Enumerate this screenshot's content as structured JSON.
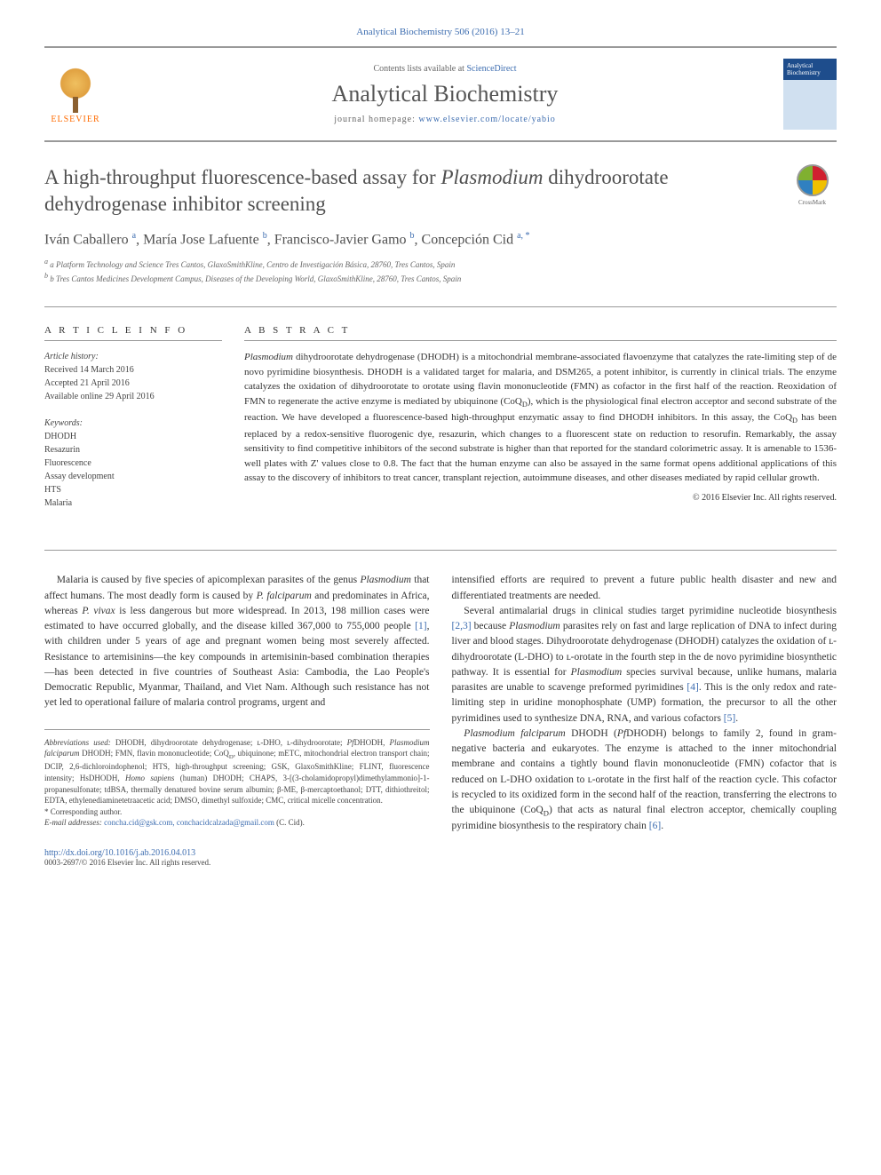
{
  "citation": "Analytical Biochemistry 506 (2016) 13–21",
  "header": {
    "contents_prefix": "Contents lists available at ",
    "contents_link": "ScienceDirect",
    "journal": "Analytical Biochemistry",
    "homepage_prefix": "journal homepage: ",
    "homepage_url": "www.elsevier.com/locate/yabio",
    "elsevier": "ELSEVIER",
    "cover_text": "Analytical Biochemistry"
  },
  "title_html": "A high-throughput fluorescence-based assay for <em>Plasmodium</em> dihydroorotate dehydrogenase inhibitor screening",
  "crossmark": "CrossMark",
  "authors_html": "Iván Caballero <sup>a</sup>, María Jose Lafuente <sup>b</sup>, Francisco-Javier Gamo <sup>b</sup>, Concepción Cid <sup>a, *</sup>",
  "affiliations": [
    "a Platform Technology and Science Tres Cantos, GlaxoSmithKline, Centro de Investigación Básica, 28760, Tres Cantos, Spain",
    "b Tres Cantos Medicines Development Campus, Diseases of the Developing World, GlaxoSmithKline, 28760, Tres Cantos, Spain"
  ],
  "info": {
    "heading": "A R T I C L E   I N F O",
    "history_label": "Article history:",
    "history": [
      "Received 14 March 2016",
      "Accepted 21 April 2016",
      "Available online 29 April 2016"
    ],
    "keywords_label": "Keywords:",
    "keywords": [
      "DHODH",
      "Resazurin",
      "Fluorescence",
      "Assay development",
      "HTS",
      "Malaria"
    ]
  },
  "abstract": {
    "heading": "A B S T R A C T",
    "text_html": "<em>Plasmodium</em> dihydroorotate dehydrogenase (DHODH) is a mitochondrial membrane-associated flavoenzyme that catalyzes the rate-limiting step of de novo pyrimidine biosynthesis. DHODH is a validated target for malaria, and DSM265, a potent inhibitor, is currently in clinical trials. The enzyme catalyzes the oxidation of dihydroorotate to orotate using flavin mononucleotide (FMN) as cofactor in the first half of the reaction. Reoxidation of FMN to regenerate the active enzyme is mediated by ubiquinone (CoQ<sub>D</sub>), which is the physiological final electron acceptor and second substrate of the reaction. We have developed a fluorescence-based high-throughput enzymatic assay to find DHODH inhibitors. In this assay, the CoQ<sub>D</sub> has been replaced by a redox-sensitive fluorogenic dye, resazurin, which changes to a fluorescent state on reduction to resorufin. Remarkably, the assay sensitivity to find competitive inhibitors of the second substrate is higher than that reported for the standard colorimetric assay. It is amenable to 1536-well plates with Z' values close to 0.8. The fact that the human enzyme can also be assayed in the same format opens additional applications of this assay to the discovery of inhibitors to treat cancer, transplant rejection, autoimmune diseases, and other diseases mediated by rapid cellular growth.",
    "copyright": "© 2016 Elsevier Inc. All rights reserved."
  },
  "body": {
    "left": [
      "Malaria is caused by five species of apicomplexan parasites of the genus <em>Plasmodium</em> that affect humans. The most deadly form is caused by <em>P. falciparum</em> and predominates in Africa, whereas <em>P. vivax</em> is less dangerous but more widespread. In 2013, 198 million cases were estimated to have occurred globally, and the disease killed 367,000 to 755,000 people <span class='ref'>[1]</span>, with children under 5 years of age and pregnant women being most severely affected. Resistance to artemisinins—the key compounds in artemisinin-based combination therapies—has been detected in five countries of Southeast Asia: Cambodia, the Lao People's Democratic Republic, Myanmar, Thailand, and Viet Nam. Although such resistance has not yet led to operational failure of malaria control programs, urgent and"
    ],
    "right": [
      "intensified efforts are required to prevent a future public health disaster and new and differentiated treatments are needed.",
      "Several antimalarial drugs in clinical studies target pyrimidine nucleotide biosynthesis <span class='ref'>[2,3]</span> because <em>Plasmodium</em> parasites rely on fast and large replication of DNA to infect during liver and blood stages. Dihydroorotate dehydrogenase (DHODH) catalyzes the oxidation of ʟ-dihydroorotate (L-DHO) to ʟ-orotate in the fourth step in the de novo pyrimidine biosynthetic pathway. It is essential for <em>Plasmodium</em> species survival because, unlike humans, malaria parasites are unable to scavenge preformed pyrimidines <span class='ref'>[4]</span>. This is the only redox and rate-limiting step in uridine monophosphate (UMP) formation, the precursor to all the other pyrimidines used to synthesize DNA, RNA, and various cofactors <span class='ref'>[5]</span>.",
      "<em>Plasmodium falciparum</em> DHODH (<em>Pf</em>DHODH) belongs to family 2, found in gram-negative bacteria and eukaryotes. The enzyme is attached to the inner mitochondrial membrane and contains a tightly bound flavin mononucleotide (FMN) cofactor that is reduced on L-DHO oxidation to ʟ-orotate in the first half of the reaction cycle. This cofactor is recycled to its oxidized form in the second half of the reaction, transferring the electrons to the ubiquinone (CoQ<sub>D</sub>) that acts as natural final electron acceptor, chemically coupling pyrimidine biosynthesis to the respiratory chain <span class='ref'>[6]</span>."
    ]
  },
  "footnotes": {
    "abbrev_html": "<em>Abbreviations used:</em> DHODH, dihydroorotate dehydrogenase; ʟ-DHO, ʟ-dihydroorotate; <em>Pf</em>DHODH, <em>Plasmodium falciparum</em> DHODH; FMN, flavin mononucleotide; CoQ<sub>D</sub>, ubiquinone; mETC, mitochondrial electron transport chain; DCIP, 2,6-dichloroindophenol; HTS, high-throughput screening; GSK, GlaxoSmithKline; FLINT, fluorescence intensity; HsDHODH, <em>Homo sapiens</em> (human) DHODH; CHAPS, 3-[(3-cholamidopropyl)dimethylammonio]-1-propanesulfonate; tdBSA, thermally denatured bovine serum albumin; β-ME, β-mercaptoethanol; DTT, dithiothreitol; EDTA, ethylenediaminetetraacetic acid; DMSO, dimethyl sulfoxide; CMC, critical micelle concentration.",
    "corresponding": "* Corresponding author.",
    "email_label": "E-mail addresses:",
    "emails": "concha.cid@gsk.com, conchacidcalzada@gmail.com",
    "email_suffix": "(C. Cid).",
    "doi": "http://dx.doi.org/10.1016/j.ab.2016.04.013",
    "footer": "0003-2697/© 2016 Elsevier Inc. All rights reserved."
  },
  "colors": {
    "link": "#3d6db0",
    "text": "#333333",
    "heading": "#505050",
    "border": "#999999",
    "elsevier_orange": "#ff6b00"
  }
}
